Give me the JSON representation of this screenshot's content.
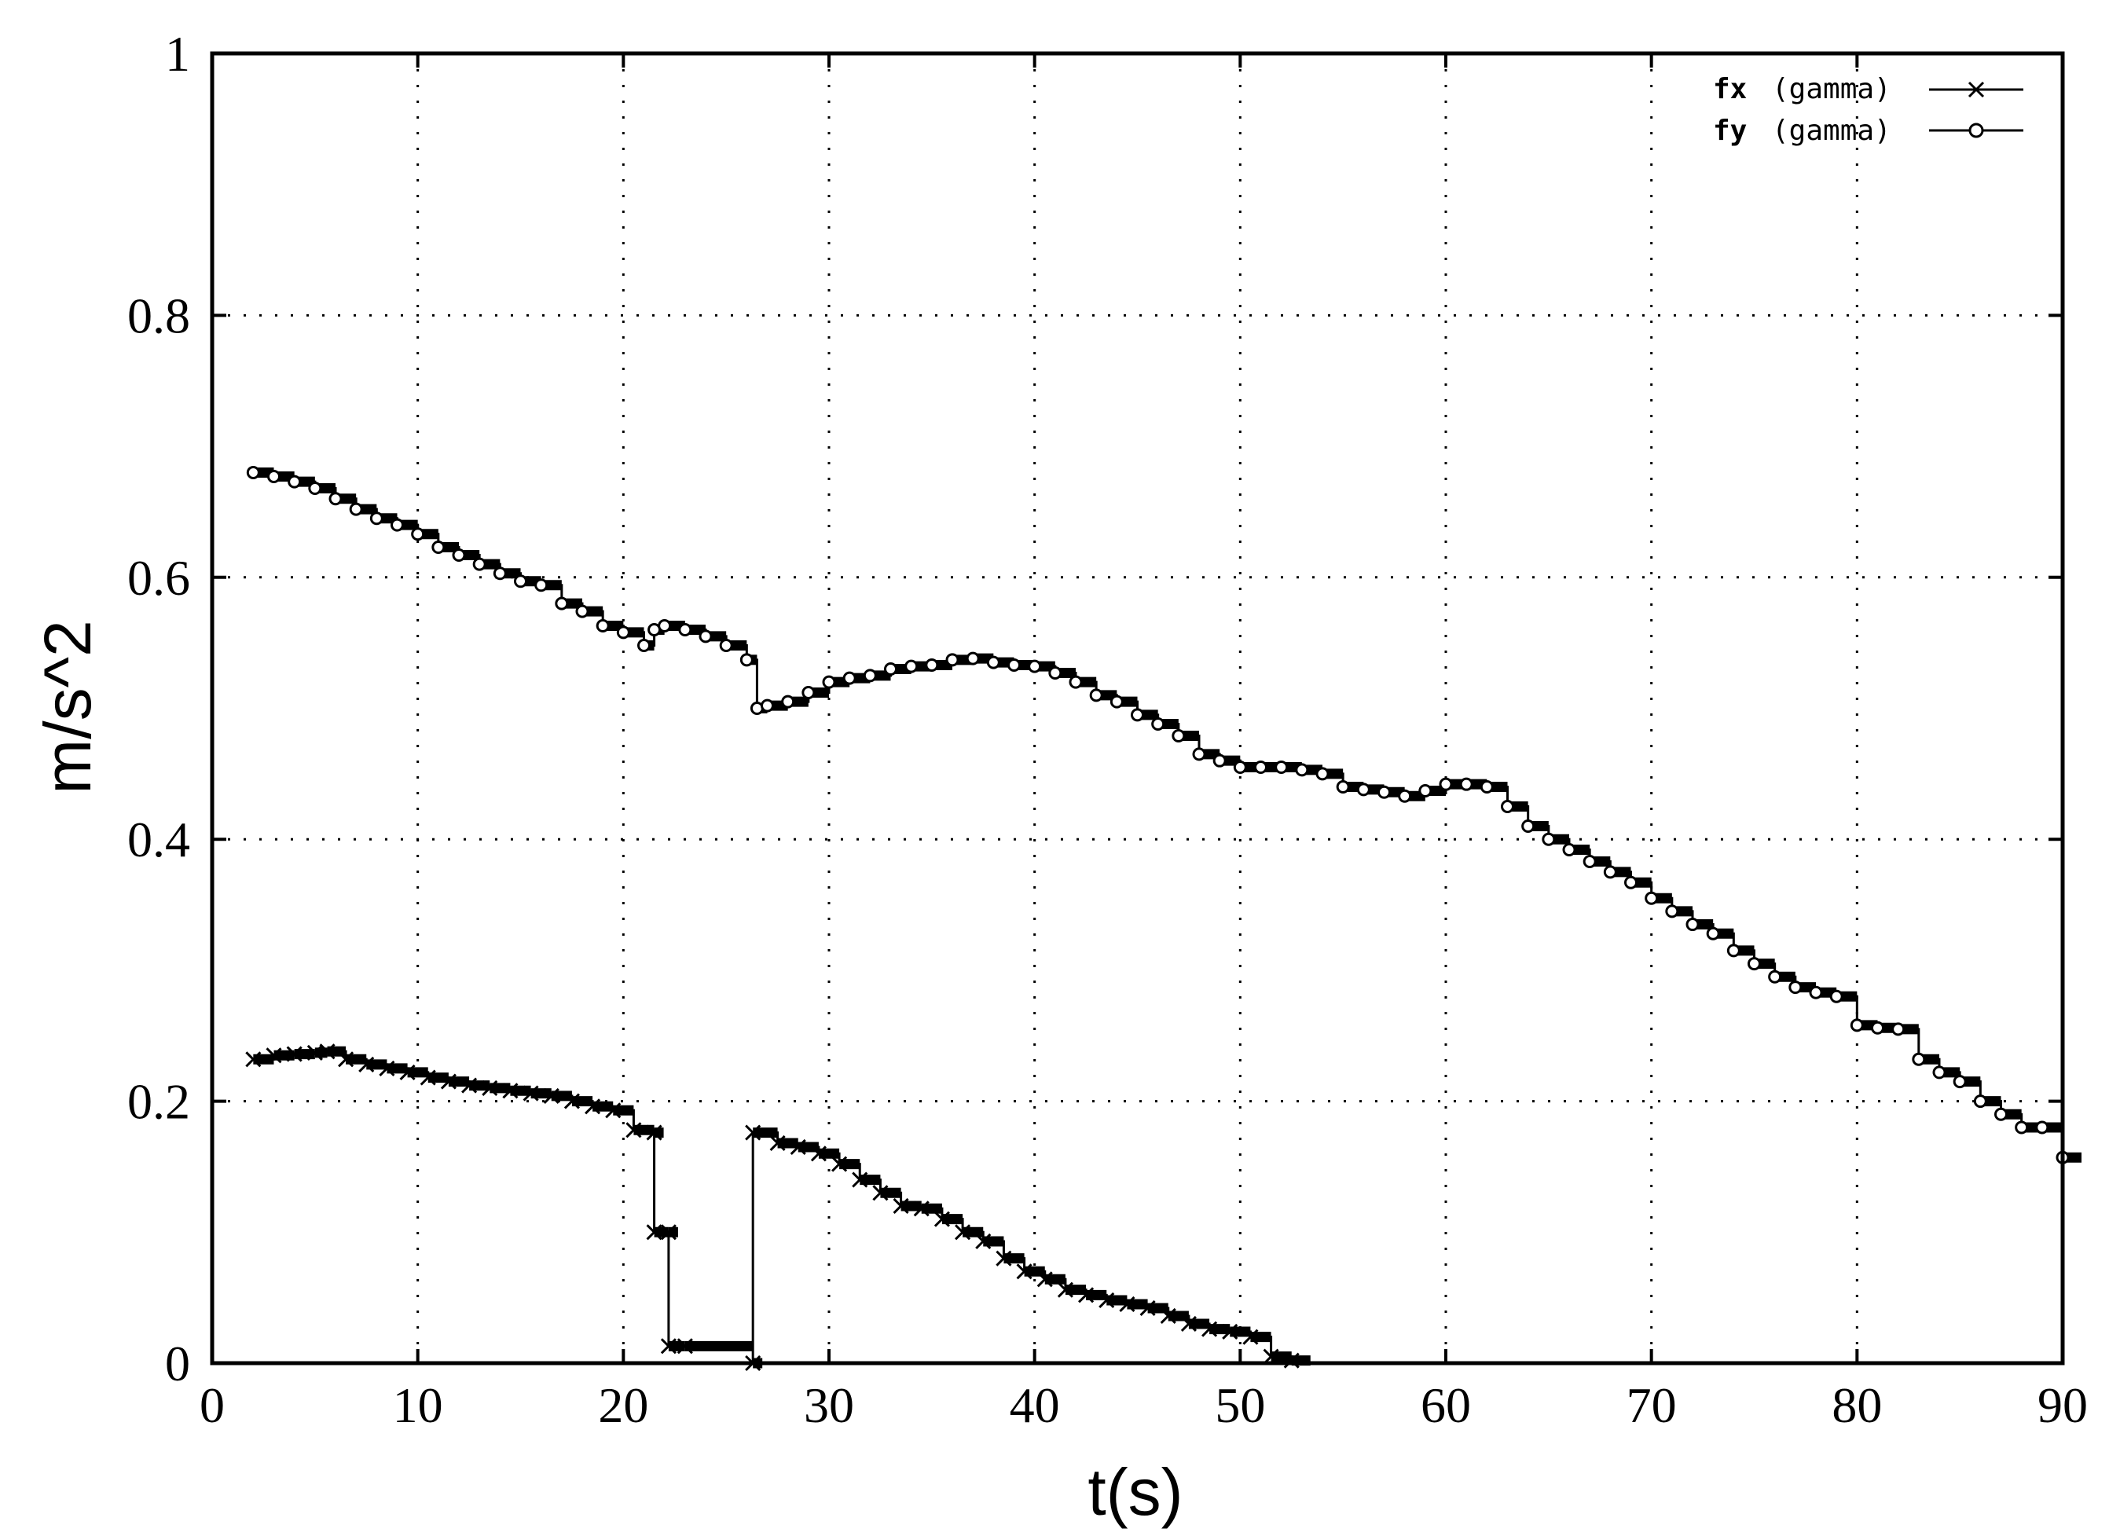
{
  "chart_data": {
    "type": "line",
    "title": "",
    "xlabel": "t(s)",
    "ylabel": "m/s^2",
    "xlim": [
      0,
      90
    ],
    "ylim": [
      0,
      1
    ],
    "xticks": [
      0,
      10,
      20,
      30,
      40,
      50,
      60,
      70,
      80,
      90
    ],
    "xtick_labels": [
      "0",
      "10",
      "20",
      "30",
      "40",
      "50",
      "60",
      "70",
      "80",
      "90"
    ],
    "yticks": [
      0,
      0.2,
      0.4,
      0.6,
      0.8,
      1
    ],
    "ytick_labels": [
      "0",
      "0.2",
      "0.4",
      "0.6",
      "0.8",
      "1"
    ],
    "grid": true,
    "legend_position": "top-right",
    "series": [
      {
        "name": "fx",
        "label_suffix": "(gamma)",
        "marker": "cross",
        "color": "#000000",
        "x": [
          2,
          3,
          4,
          5,
          5.6,
          6.5,
          7.5,
          8.5,
          9.5,
          10.5,
          11.5,
          12.5,
          13.5,
          14.5,
          15.5,
          16.5,
          17.5,
          18.5,
          19.5,
          20.5,
          21.5,
          21.5,
          22.2,
          22.2,
          23,
          26.3,
          26.3,
          27.5,
          28.5,
          29.5,
          30.5,
          31.5,
          32.5,
          33.5,
          34.5,
          35.5,
          36.5,
          37.5,
          38.5,
          39.5,
          40.5,
          41.5,
          42.5,
          43.5,
          44.5,
          45.5,
          46.5,
          47.5,
          48.5,
          49.5,
          50.5,
          51.5,
          52.5
        ],
        "y": [
          0.232,
          0.235,
          0.236,
          0.237,
          0.238,
          0.232,
          0.228,
          0.225,
          0.222,
          0.218,
          0.215,
          0.212,
          0.21,
          0.208,
          0.206,
          0.204,
          0.2,
          0.196,
          0.193,
          0.178,
          0.176,
          0.1,
          0.1,
          0.013,
          0.013,
          0,
          0.176,
          0.168,
          0.165,
          0.16,
          0.152,
          0.14,
          0.13,
          0.12,
          0.118,
          0.11,
          0.1,
          0.093,
          0.08,
          0.07,
          0.064,
          0.056,
          0.052,
          0.048,
          0.045,
          0.042,
          0.036,
          0.03,
          0.026,
          0.024,
          0.02,
          0.005,
          0.002
        ]
      },
      {
        "name": "fy",
        "label_suffix": "(gamma)",
        "marker": "circle",
        "color": "#000000",
        "x": [
          2,
          3,
          4,
          5,
          6,
          7,
          8,
          9,
          10,
          11,
          12,
          13,
          14,
          15,
          16,
          17,
          18,
          19,
          20,
          21,
          21.5,
          22,
          23,
          24,
          25,
          26,
          26.5,
          27,
          28,
          29,
          30,
          31,
          32,
          33,
          34,
          35,
          36,
          37,
          38,
          39,
          40,
          41,
          42,
          43,
          44,
          45,
          46,
          47,
          48,
          49,
          50,
          51,
          52,
          53,
          54,
          55,
          56,
          57,
          58,
          59,
          60,
          61,
          62,
          63,
          64,
          65,
          66,
          67,
          68,
          69,
          70,
          71,
          72,
          73,
          74,
          75,
          76,
          77,
          78,
          79,
          80,
          81,
          82,
          83,
          84,
          85,
          86,
          87,
          88,
          89,
          90
        ],
        "y": [
          0.68,
          0.677,
          0.673,
          0.668,
          0.66,
          0.652,
          0.645,
          0.64,
          0.633,
          0.623,
          0.617,
          0.61,
          0.603,
          0.597,
          0.594,
          0.58,
          0.574,
          0.563,
          0.558,
          0.548,
          0.56,
          0.563,
          0.56,
          0.555,
          0.548,
          0.537,
          0.5,
          0.502,
          0.505,
          0.512,
          0.52,
          0.523,
          0.525,
          0.53,
          0.532,
          0.533,
          0.537,
          0.538,
          0.535,
          0.533,
          0.532,
          0.527,
          0.52,
          0.51,
          0.505,
          0.495,
          0.488,
          0.479,
          0.465,
          0.46,
          0.455,
          0.455,
          0.455,
          0.453,
          0.45,
          0.44,
          0.438,
          0.436,
          0.433,
          0.437,
          0.442,
          0.442,
          0.44,
          0.425,
          0.41,
          0.4,
          0.392,
          0.383,
          0.375,
          0.367,
          0.355,
          0.345,
          0.335,
          0.328,
          0.315,
          0.305,
          0.295,
          0.287,
          0.283,
          0.28,
          0.258,
          0.256,
          0.255,
          0.232,
          0.222,
          0.215,
          0.2,
          0.19,
          0.18,
          0.18,
          0.157
        ]
      }
    ]
  }
}
